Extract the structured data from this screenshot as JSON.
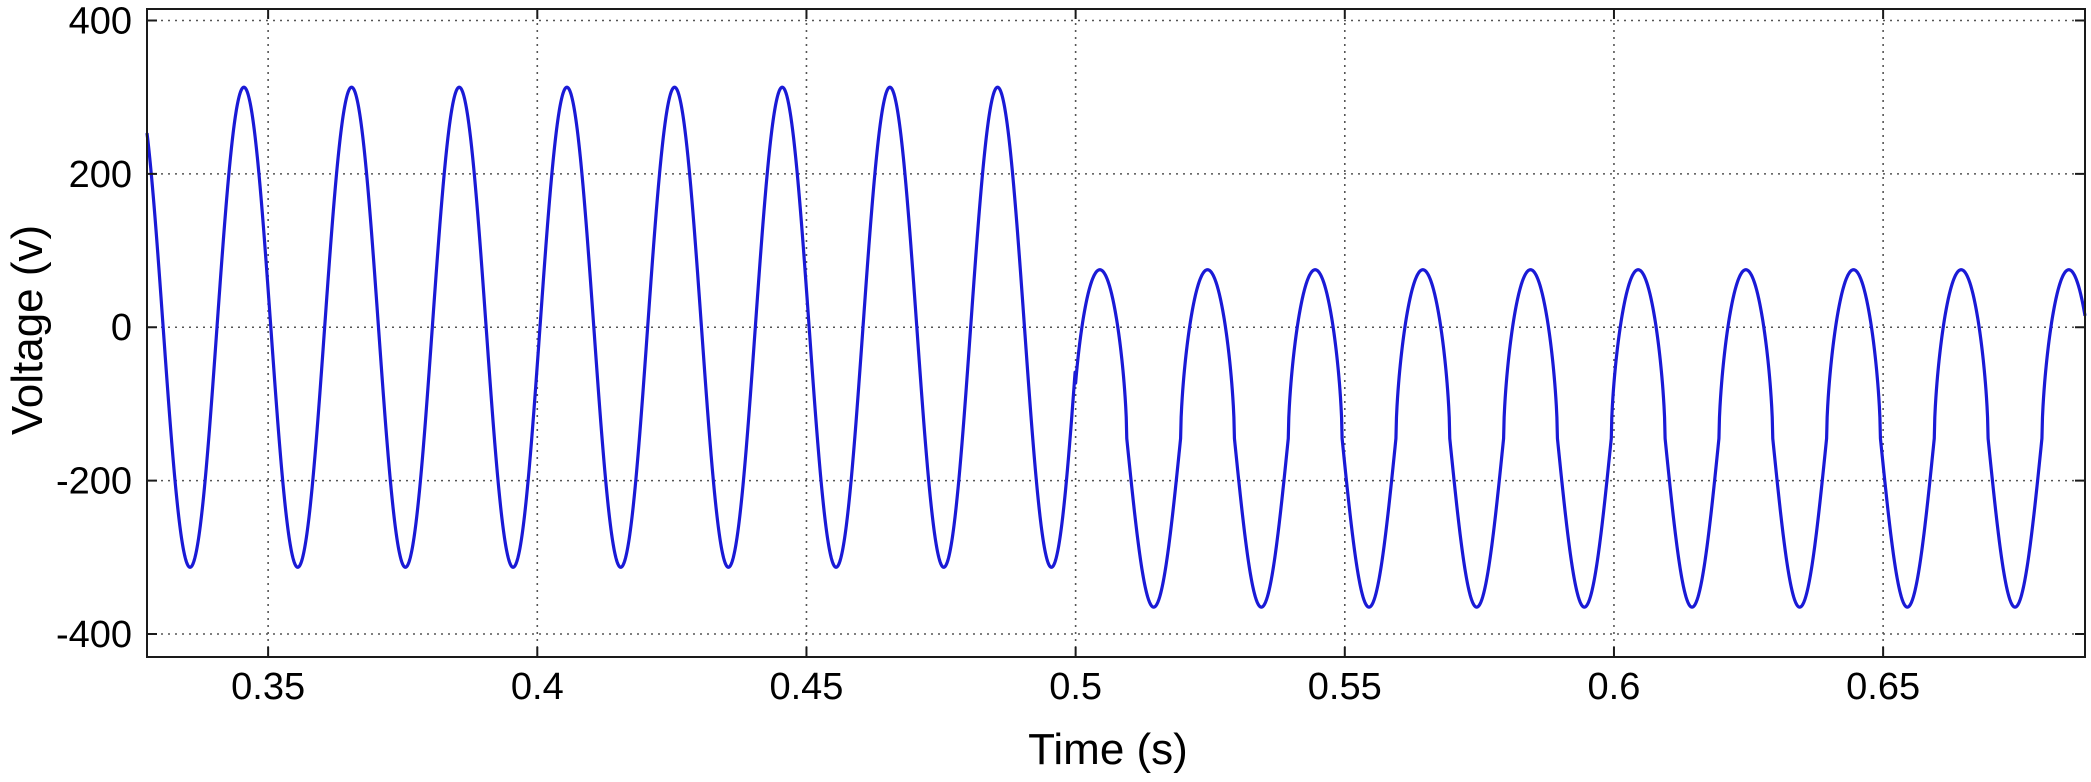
{
  "chart_data": {
    "type": "line",
    "title": "",
    "xlabel": "Time (s)",
    "ylabel": "Voltage (v)",
    "xlim": [
      0.3275,
      0.6875
    ],
    "ylim": [
      -430,
      415
    ],
    "x_ticks": [
      0.35,
      0.4,
      0.45,
      0.5,
      0.55,
      0.6,
      0.65
    ],
    "x_tick_labels": [
      "0.35",
      "0.4",
      "0.45",
      "0.5",
      "0.55",
      "0.6",
      "0.65"
    ],
    "y_ticks": [
      400,
      200,
      0,
      -200,
      -400
    ],
    "y_tick_labels": [
      "400",
      "200",
      "0",
      "-200",
      "-400"
    ],
    "grid": true,
    "grid_style": "dotted",
    "series": [
      {
        "color": "#1a1ad6",
        "segments": [
          {
            "t_start": 0.3275,
            "t_end": 0.5,
            "frequency_hz": 50,
            "amplitude": 313,
            "offset": 0,
            "peak_time": 0.3455,
            "shape": "sinusoid"
          },
          {
            "t_start": 0.5,
            "t_end": 0.6875,
            "frequency_hz": 50,
            "max": 75,
            "min": -365,
            "peak_time": 0.5045,
            "shape": "sinusoid, positive half-cycle clipped near 75 V"
          }
        ],
        "approx_peaks": [
          {
            "t": 0.3455,
            "v": 313
          },
          {
            "t": 0.3655,
            "v": 313
          },
          {
            "t": 0.3855,
            "v": 313
          },
          {
            "t": 0.4055,
            "v": 313
          },
          {
            "t": 0.4255,
            "v": 313
          },
          {
            "t": 0.4455,
            "v": 313
          },
          {
            "t": 0.4655,
            "v": 313
          },
          {
            "t": 0.4855,
            "v": 313
          },
          {
            "t": 0.5045,
            "v": 75
          },
          {
            "t": 0.5245,
            "v": 75
          },
          {
            "t": 0.5445,
            "v": 75
          },
          {
            "t": 0.5645,
            "v": 75
          },
          {
            "t": 0.5845,
            "v": 75
          },
          {
            "t": 0.6045,
            "v": 75
          },
          {
            "t": 0.6245,
            "v": 75
          },
          {
            "t": 0.6445,
            "v": 75
          },
          {
            "t": 0.6645,
            "v": 75
          },
          {
            "t": 0.6845,
            "v": 75
          }
        ],
        "approx_troughs": [
          {
            "t": 0.3355,
            "v": -313
          },
          {
            "t": 0.3555,
            "v": -313
          },
          {
            "t": 0.3755,
            "v": -313
          },
          {
            "t": 0.3955,
            "v": -313
          },
          {
            "t": 0.4155,
            "v": -313
          },
          {
            "t": 0.4355,
            "v": -313
          },
          {
            "t": 0.4555,
            "v": -313
          },
          {
            "t": 0.4755,
            "v": -313
          },
          {
            "t": 0.4955,
            "v": -313
          },
          {
            "t": 0.5175,
            "v": -365
          },
          {
            "t": 0.5375,
            "v": -365
          },
          {
            "t": 0.5575,
            "v": -365
          },
          {
            "t": 0.5775,
            "v": -365
          },
          {
            "t": 0.5975,
            "v": -365
          },
          {
            "t": 0.6175,
            "v": -365
          },
          {
            "t": 0.6375,
            "v": -365
          },
          {
            "t": 0.6575,
            "v": -365
          },
          {
            "t": 0.6775,
            "v": -365
          }
        ]
      }
    ]
  }
}
